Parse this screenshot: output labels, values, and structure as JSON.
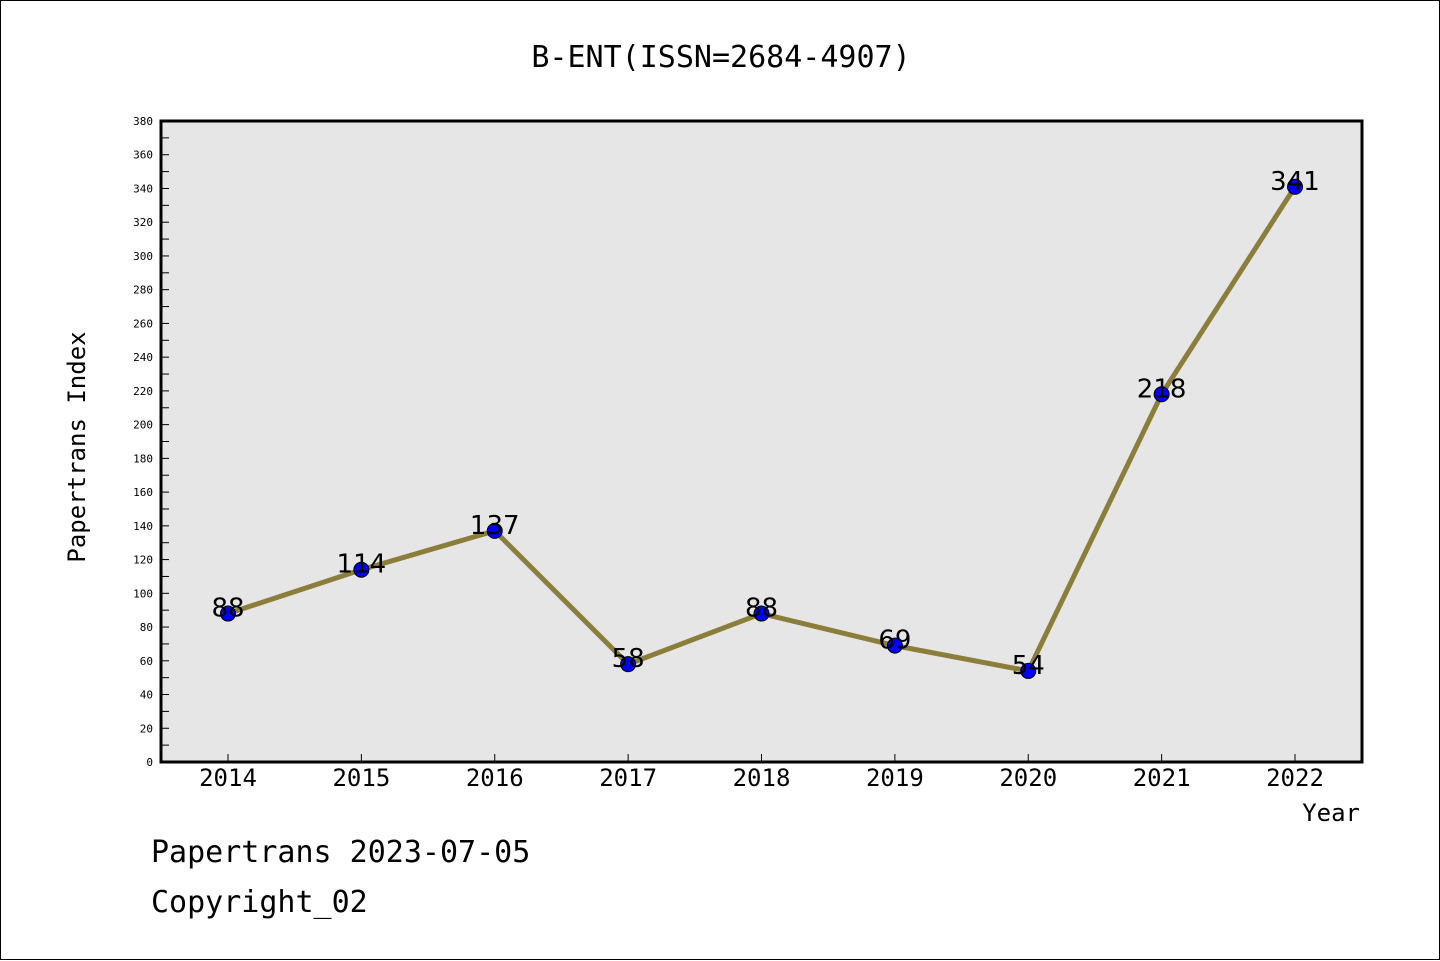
{
  "chart_data": {
    "type": "line",
    "title": "B-ENT(ISSN=2684-4907)",
    "xlabel": "Year",
    "ylabel": "Papertrans Index",
    "categories": [
      "2014",
      "2015",
      "2016",
      "2017",
      "2018",
      "2019",
      "2020",
      "2021",
      "2022"
    ],
    "series": [
      {
        "values": [
          88,
          114,
          137,
          58,
          88,
          69,
          54,
          218,
          341
        ]
      }
    ],
    "data_labels": [
      "88",
      "114",
      "137",
      "58",
      "88",
      "69",
      "54",
      "218",
      "341"
    ],
    "ylim": [
      0,
      380
    ],
    "y_major_step": 20,
    "y_ticks": [
      "0",
      "20",
      "40",
      "60",
      "80",
      "100",
      "120",
      "140",
      "160",
      "180",
      "200",
      "220",
      "240",
      "260",
      "280",
      "300",
      "320",
      "340",
      "360",
      "380"
    ],
    "grid": false,
    "legend": "none",
    "colors": {
      "line": "#8b7d3a",
      "marker": "#0000ff",
      "plot_bg": "#e6e6e6"
    }
  },
  "footer": {
    "line1": "Papertrans 2023-07-05",
    "line2": "Copyright_02"
  }
}
